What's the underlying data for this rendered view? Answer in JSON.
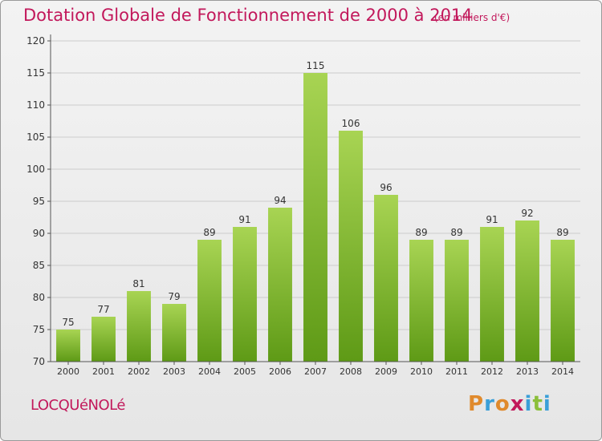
{
  "header": {
    "title": "Dotation Globale de Fonctionnement de 2000 à 2014",
    "subtitle": "(en milliers d'€)"
  },
  "footer": {
    "commune": "LOCQUéNOLé",
    "logo_letters": [
      "P",
      "r",
      "o",
      "x",
      "i",
      "t",
      "i"
    ],
    "logo_colors": [
      "#e08a2c",
      "#3a9fd8",
      "#e08a2c",
      "#c2185b",
      "#3a9fd8",
      "#8bbf3a",
      "#3a9fd8"
    ]
  },
  "colors": {
    "bar_top": "#a8d453",
    "bar_bottom": "#5e9a16",
    "text": "#333333",
    "grid": "#cccccc"
  },
  "chart_data": {
    "type": "bar",
    "categories": [
      "2000",
      "2001",
      "2002",
      "2003",
      "2004",
      "2005",
      "2006",
      "2007",
      "2008",
      "2009",
      "2010",
      "2011",
      "2012",
      "2013",
      "2014"
    ],
    "values": [
      75,
      77,
      81,
      79,
      89,
      91,
      94,
      115,
      106,
      96,
      89,
      89,
      91,
      92,
      89
    ],
    "title": "Dotation Globale de Fonctionnement de 2000 à 2014",
    "subtitle": "(en milliers d'€)",
    "ylim": [
      70,
      120
    ],
    "yticks": [
      70,
      75,
      80,
      85,
      90,
      95,
      100,
      105,
      110,
      115,
      120
    ],
    "grid": true,
    "data_labels": true
  }
}
